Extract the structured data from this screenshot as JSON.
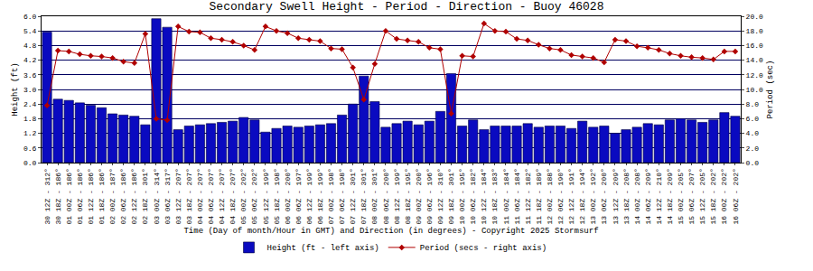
{
  "chart_data": {
    "type": "bar",
    "title": "Secondary Swell Height - Period - Direction - Buoy 46028",
    "x_label": "Time (Day of month/Hour in GMT) and Direction (in degrees) - Copyright 2025 Stormsurf",
    "y_label": "Height (ft)",
    "y2_label": "Period (sec)",
    "categories": [
      "30 12Z - 312°",
      "30 18Z - 186°",
      "01 00Z - 186°",
      "01 06Z - 186°",
      "01 12Z - 186°",
      "01 18Z - 186°",
      "02 00Z - 187°",
      "02 06Z - 186°",
      "02 12Z - 186°",
      "02 18Z - 301°",
      "03 00Z - 314°",
      "03 06Z - 317°",
      "03 12Z - 207°",
      "03 18Z - 207°",
      "04 00Z - 207°",
      "04 06Z - 207°",
      "04 12Z - 207°",
      "04 18Z - 207°",
      "05 00Z - 202°",
      "05 06Z - 202°",
      "05 12Z - 199°",
      "05 18Z - 198°",
      "06 00Z - 200°",
      "06 06Z - 197°",
      "06 12Z - 199°",
      "06 18Z - 199°",
      "07 00Z - 198°",
      "07 06Z - 198°",
      "07 12Z - 301°",
      "07 18Z - 301°",
      "08 00Z - 301°",
      "08 06Z - 200°",
      "08 12Z - 199°",
      "08 18Z - 195°",
      "09 00Z - 200°",
      "09 06Z - 196°",
      "09 12Z - 310°",
      "09 18Z - 301°",
      "10 00Z - 195°",
      "10 06Z - 182°",
      "10 12Z - 184°",
      "10 18Z - 183°",
      "11 00Z - 184°",
      "11 06Z - 184°",
      "11 12Z - 182°",
      "11 18Z - 189°",
      "12 00Z - 188°",
      "12 06Z - 190°",
      "12 12Z - 191°",
      "12 18Z - 194°",
      "13 00Z - 192°",
      "13 06Z - 200°",
      "13 12Z - 209°",
      "13 18Z - 208°",
      "14 00Z - 208°",
      "14 06Z - 209°",
      "14 12Z - 210°",
      "14 18Z - 209°",
      "15 00Z - 205°",
      "15 06Z - 207°",
      "15 12Z - 205°",
      "15 18Z - 202°",
      "16 00Z - 202°",
      "16 06Z - 202°"
    ],
    "series": [
      {
        "name": "Height (ft - left axis)",
        "type": "bar",
        "color": "#0a0ac0",
        "values": [
          5.35,
          2.6,
          2.55,
          2.45,
          2.35,
          2.25,
          2.0,
          1.95,
          1.9,
          1.55,
          5.9,
          5.55,
          1.35,
          1.5,
          1.55,
          1.6,
          1.65,
          1.7,
          1.85,
          1.75,
          1.25,
          1.4,
          1.5,
          1.45,
          1.5,
          1.55,
          1.6,
          1.95,
          2.4,
          3.55,
          2.5,
          1.45,
          1.6,
          1.7,
          1.55,
          1.7,
          2.1,
          3.65,
          1.5,
          1.75,
          1.35,
          1.5,
          1.5,
          1.5,
          1.6,
          1.45,
          1.5,
          1.5,
          1.4,
          1.7,
          1.45,
          1.5,
          1.2,
          1.35,
          1.45,
          1.6,
          1.55,
          1.75,
          1.8,
          1.75,
          1.65,
          1.75,
          2.05,
          1.9
        ]
      },
      {
        "name": "Period (secs - right axis)",
        "type": "line",
        "axis": "y2",
        "color": "#b00000",
        "marker": "diamond",
        "values": [
          7.8,
          15.3,
          15.2,
          14.8,
          14.6,
          14.5,
          14.3,
          13.8,
          13.6,
          17.6,
          6.0,
          5.8,
          18.6,
          17.9,
          17.8,
          17.0,
          16.8,
          16.5,
          16.0,
          15.4,
          18.6,
          18.0,
          17.7,
          17.0,
          16.8,
          16.6,
          15.6,
          15.5,
          13.0,
          8.6,
          13.5,
          18.0,
          16.9,
          16.7,
          16.5,
          15.7,
          15.5,
          6.7,
          14.6,
          14.5,
          19.0,
          18.0,
          17.9,
          16.9,
          16.7,
          16.1,
          15.6,
          15.4,
          14.7,
          14.5,
          14.3,
          13.7,
          16.8,
          16.6,
          15.9,
          15.7,
          15.4,
          14.9,
          14.6,
          14.4,
          14.3,
          14.1,
          15.2,
          15.2
        ]
      }
    ],
    "ylim": [
      0,
      6
    ],
    "yticks": [
      {
        "value": 0,
        "label": "0.0"
      },
      0.6,
      1.2,
      1.8,
      2.4,
      {
        "value": 3,
        "label": "3.0"
      },
      3.6,
      4.2,
      4.8,
      5.4,
      {
        "value": 6,
        "label": "6.0"
      }
    ],
    "y2lim": [
      0,
      20
    ],
    "y2ticks": [
      {
        "value": 0,
        "label": "0.0"
      },
      {
        "value": 2,
        "label": "2.0"
      },
      {
        "value": 4,
        "label": "4.0"
      },
      {
        "value": 6,
        "label": "6.0"
      },
      {
        "value": 8,
        "label": "8.0"
      },
      {
        "value": 10,
        "label": "10.0"
      },
      {
        "value": 12,
        "label": "12.0"
      },
      {
        "value": 14,
        "label": "14.0"
      },
      {
        "value": 16,
        "label": "16.0"
      },
      {
        "value": 18,
        "label": "18.0"
      },
      {
        "value": 20,
        "label": "20.0"
      }
    ],
    "grid": true,
    "legend": "bottom"
  }
}
